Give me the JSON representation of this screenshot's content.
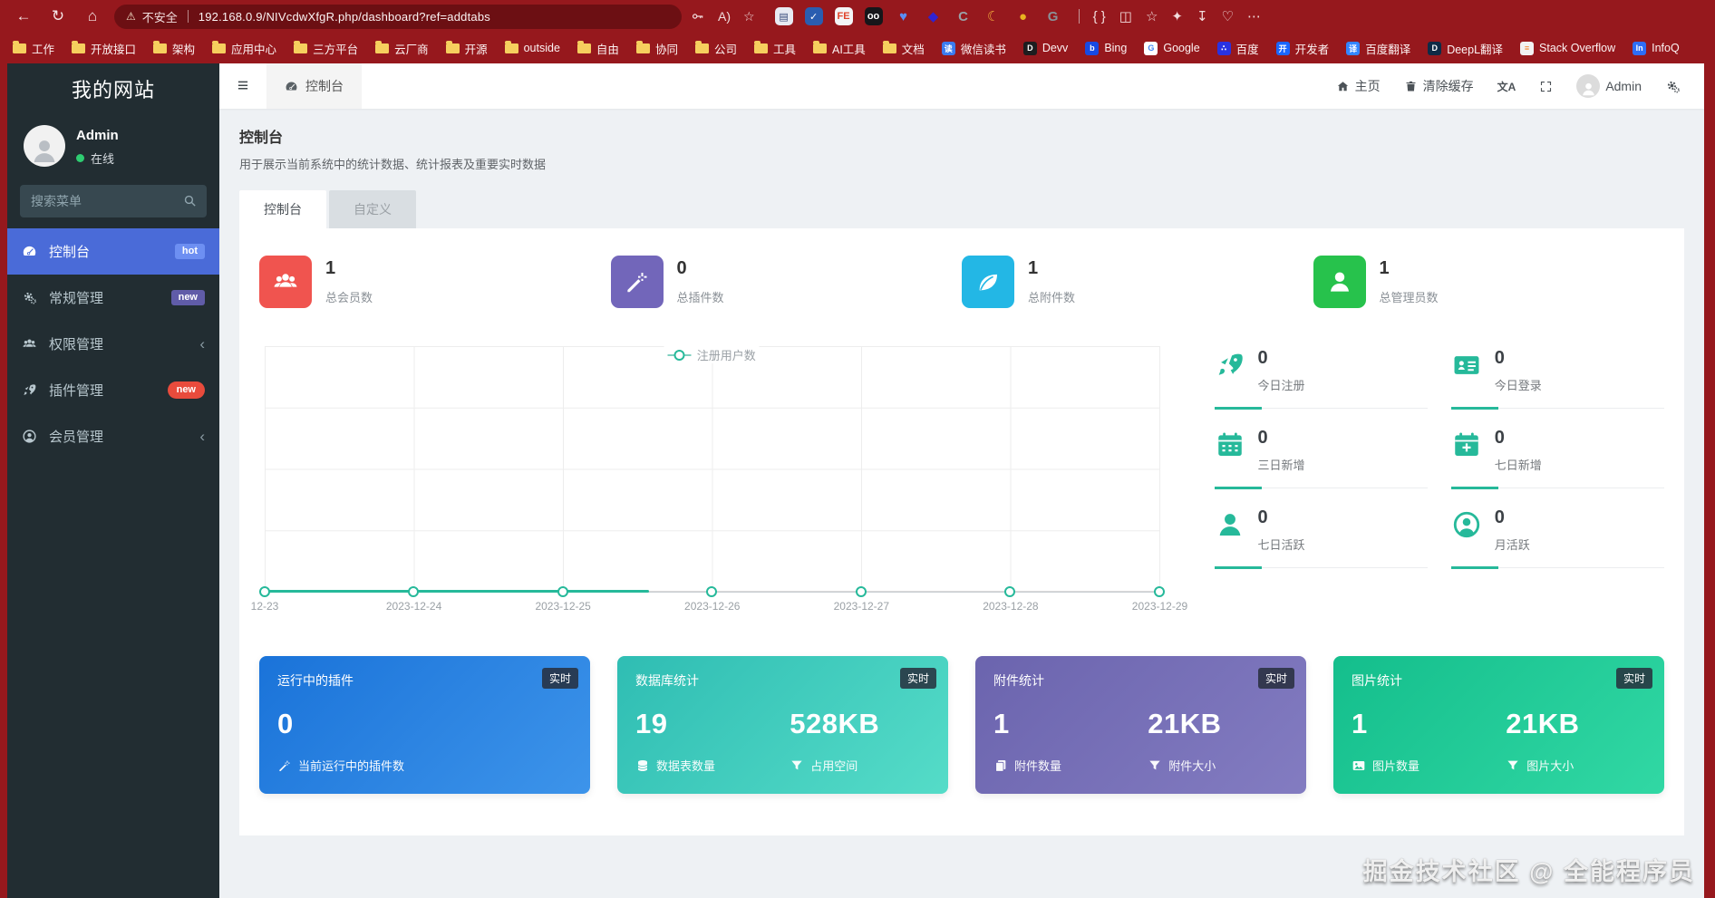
{
  "colors": {
    "chrome_red": "#96181d",
    "address_bar": "#6c0f13",
    "sidebar_bg": "#222d32",
    "sidebar_active": "#4a6bd8",
    "hot_badge": "#6d8ff2",
    "new_badge_purple": "#605ca8",
    "new_badge_red": "#e94b3c",
    "teal": "#26b99a",
    "stat_red": "#f0544f",
    "stat_purple": "#7266ba",
    "stat_cyan": "#23b7e5",
    "stat_green": "#27c24c",
    "online_green": "#2ecc71"
  },
  "chrome": {
    "nav_icons": [
      {
        "name": "back-icon",
        "glyph": "←"
      },
      {
        "name": "refresh-icon",
        "glyph": "↻"
      },
      {
        "name": "home-icon",
        "glyph": "⌂"
      }
    ],
    "warning_glyph": "⚠",
    "security_label": "不安全",
    "url": "192.168.0.9/NIVcdwXfgR.php/dashboard?ref=addtabs",
    "address_right": [
      {
        "name": "password-key-icon",
        "svg": "key"
      },
      {
        "name": "read-aloud-icon",
        "glyph": "A)"
      },
      {
        "name": "favorite-star-icon",
        "glyph": "☆"
      }
    ],
    "extensions": [
      {
        "name": "flag-extension",
        "glyph": "▤",
        "bg": "#e8eaf2",
        "fg": "#384b7a"
      },
      {
        "name": "check-extension",
        "glyph": "✓",
        "bg": "#2a5db0",
        "fg": "#ffffff"
      },
      {
        "name": "fe-extension",
        "glyph": "FE",
        "bg": "#f3f5f7",
        "fg": "#e0452c"
      },
      {
        "name": "oo-extension",
        "glyph": "oo",
        "bg": "#16161a",
        "fg": "#ffffff"
      },
      {
        "name": "heart-extension",
        "glyph": "♥",
        "bg": "",
        "fg": "#5a8df5"
      },
      {
        "name": "diamond-extension",
        "glyph": "◆",
        "bg": "",
        "fg": "#3023d1"
      },
      {
        "name": "circle-c-extension",
        "glyph": "C",
        "bg": "",
        "fg": "#9aa0a6"
      },
      {
        "name": "moon-extension",
        "glyph": "☾",
        "bg": "",
        "fg": "#f0a83c"
      },
      {
        "name": "ball-extension",
        "glyph": "●",
        "bg": "",
        "fg": "#e9b320"
      },
      {
        "name": "g-extension",
        "glyph": "G",
        "bg": "",
        "fg": "#8a9097"
      }
    ],
    "toolbar_right": [
      {
        "name": "braces-icon",
        "glyph": "{ }"
      },
      {
        "name": "split-screen-icon",
        "glyph": "◫"
      },
      {
        "name": "favorites-bar-icon",
        "glyph": "☆"
      },
      {
        "name": "copilot-icon",
        "glyph": "✦"
      },
      {
        "name": "download-icon",
        "glyph": "↧"
      },
      {
        "name": "browser-essentials-icon",
        "glyph": "♡"
      },
      {
        "name": "more-icon",
        "glyph": "⋯"
      }
    ]
  },
  "bookmarks": [
    {
      "label": "工作",
      "type": "folder"
    },
    {
      "label": "开放接口",
      "type": "folder"
    },
    {
      "label": "架构",
      "type": "folder"
    },
    {
      "label": "应用中心",
      "type": "folder"
    },
    {
      "label": "三方平台",
      "type": "folder"
    },
    {
      "label": "云厂商",
      "type": "folder"
    },
    {
      "label": "开源",
      "type": "folder"
    },
    {
      "label": "outside",
      "type": "folder"
    },
    {
      "label": "自由",
      "type": "folder"
    },
    {
      "label": "协同",
      "type": "folder"
    },
    {
      "label": "公司",
      "type": "folder"
    },
    {
      "label": "工具",
      "type": "folder"
    },
    {
      "label": "AI工具",
      "type": "folder"
    },
    {
      "label": "文档",
      "type": "folder"
    },
    {
      "label": "微信读书",
      "type": "site",
      "bg": "#3b7bf0",
      "fg": "#ffffff",
      "glyph": "读"
    },
    {
      "label": "Devv",
      "type": "site",
      "bg": "#1d1d1f",
      "fg": "#ffffff",
      "glyph": "D"
    },
    {
      "label": "Bing",
      "type": "site",
      "bg": "#174ae4",
      "fg": "#ffffff",
      "glyph": "b"
    },
    {
      "label": "Google",
      "type": "site",
      "bg": "#ffffff",
      "fg": "#4285f4",
      "glyph": "G"
    },
    {
      "label": "百度",
      "type": "site",
      "bg": "#2932e1",
      "fg": "#ffffff",
      "glyph": "∴"
    },
    {
      "label": "开发者",
      "type": "site",
      "bg": "#1a66ff",
      "fg": "#ffffff",
      "glyph": "开"
    },
    {
      "label": "百度翻译",
      "type": "site",
      "bg": "#3385ff",
      "fg": "#ffffff",
      "glyph": "译"
    },
    {
      "label": "DeepL翻译",
      "type": "site",
      "bg": "#0f2b46",
      "fg": "#ffffff",
      "glyph": "D"
    },
    {
      "label": "Stack Overflow",
      "type": "site",
      "bg": "#f2f2f2",
      "fg": "#f48024",
      "glyph": "≡"
    },
    {
      "label": "InfoQ",
      "type": "site",
      "bg": "#2e6df6",
      "fg": "#ffffff",
      "glyph": "In"
    }
  ],
  "sidebar": {
    "site_title": "我的网站",
    "user": {
      "name": "Admin",
      "status": "在线"
    },
    "search_placeholder": "搜索菜单",
    "menu": [
      {
        "icon": "gauge-icon",
        "label": "控制台",
        "badge": "hot",
        "badge_color": "#6d8ff2",
        "active": true
      },
      {
        "icon": "gears-icon",
        "label": "常规管理",
        "badge": "new",
        "badge_color": "#605ca8"
      },
      {
        "icon": "users-group-icon",
        "label": "权限管理",
        "chevron": true
      },
      {
        "icon": "rocket-icon",
        "label": "插件管理",
        "badge": "new",
        "badge_color": "#e94b3c",
        "badge_pill": true
      },
      {
        "icon": "user-circle-icon",
        "label": "会员管理",
        "chevron": true
      }
    ]
  },
  "header": {
    "hamburger_glyph": "≡",
    "tab": {
      "icon": "gauge-icon",
      "label": "控制台"
    },
    "home_label": "主页",
    "clear_cache_label": "清除缓存",
    "translate_glyph": "文A",
    "user_label": "Admin"
  },
  "page": {
    "title": "控制台",
    "subtitle": "用于展示当前系统中的统计数据、统计报表及重要实时数据",
    "tabs": [
      {
        "label": "控制台",
        "active": true
      },
      {
        "label": "自定义",
        "active": false
      }
    ]
  },
  "stats": [
    {
      "icon": "users-group-icon",
      "bg": "#f0544f",
      "value": "1",
      "label": "总会员数"
    },
    {
      "icon": "magic-wand-icon",
      "bg": "#7266ba",
      "value": "0",
      "label": "总插件数"
    },
    {
      "icon": "leaf-icon",
      "bg": "#23b7e5",
      "value": "1",
      "label": "总附件数"
    },
    {
      "icon": "person-icon",
      "bg": "#27c24c",
      "value": "1",
      "label": "总管理员数"
    }
  ],
  "chart_data": {
    "type": "line",
    "title": "",
    "legend": [
      "注册用户数"
    ],
    "legend_position": "top-center",
    "x": [
      "2023-12-23",
      "2023-12-24",
      "2023-12-25",
      "2023-12-26",
      "2023-12-27",
      "2023-12-28",
      "2023-12-29"
    ],
    "x_display": [
      "12-23",
      "2023-12-24",
      "2023-12-25",
      "2023-12-26",
      "2023-12-27",
      "2023-12-28",
      "2023-12-29"
    ],
    "series": [
      {
        "name": "注册用户数",
        "values": [
          0,
          0,
          0,
          0,
          0,
          0,
          0
        ]
      }
    ],
    "line_color": "#26b99a",
    "grid": true,
    "grid_rows": 4,
    "drawn_fraction": 0.43
  },
  "mini_stats": [
    {
      "icon": "rocket-icon",
      "value": "0",
      "label": "今日注册"
    },
    {
      "icon": "id-card-icon",
      "value": "0",
      "label": "今日登录"
    },
    {
      "icon": "calendar-icon",
      "value": "0",
      "label": "三日新增"
    },
    {
      "icon": "calendar-plus-icon",
      "value": "0",
      "label": "七日新增"
    },
    {
      "icon": "person-icon",
      "value": "0",
      "label": "七日活跃"
    },
    {
      "icon": "user-circle-icon",
      "value": "0",
      "label": "月活跃"
    }
  ],
  "cards": [
    {
      "title": "运行中的插件",
      "badge": "实时",
      "gradient": [
        "#1a73d9",
        "#3d94ea"
      ],
      "values": [
        {
          "value": "0",
          "icon": "magic-wand-icon",
          "label": "当前运行中的插件数"
        }
      ]
    },
    {
      "title": "数据库统计",
      "badge": "实时",
      "gradient": [
        "#2fbdb3",
        "#55dcc8"
      ],
      "values": [
        {
          "value": "19",
          "icon": "database-icon",
          "label": "数据表数量"
        },
        {
          "value": "528KB",
          "icon": "filter-icon",
          "label": "占用空间"
        }
      ]
    },
    {
      "title": "附件统计",
      "badge": "实时",
      "gradient": [
        "#6b64ae",
        "#837cc1"
      ],
      "values": [
        {
          "value": "1",
          "icon": "copy-icon",
          "label": "附件数量"
        },
        {
          "value": "21KB",
          "icon": "filter-icon",
          "label": "附件大小"
        }
      ]
    },
    {
      "title": "图片统计",
      "badge": "实时",
      "gradient": [
        "#14be8c",
        "#31d8a4"
      ],
      "values": [
        {
          "value": "1",
          "icon": "image-icon",
          "label": "图片数量"
        },
        {
          "value": "21KB",
          "icon": "filter-icon",
          "label": "图片大小"
        }
      ]
    }
  ],
  "watermark": "掘金技术社区 @ 全能程序员"
}
